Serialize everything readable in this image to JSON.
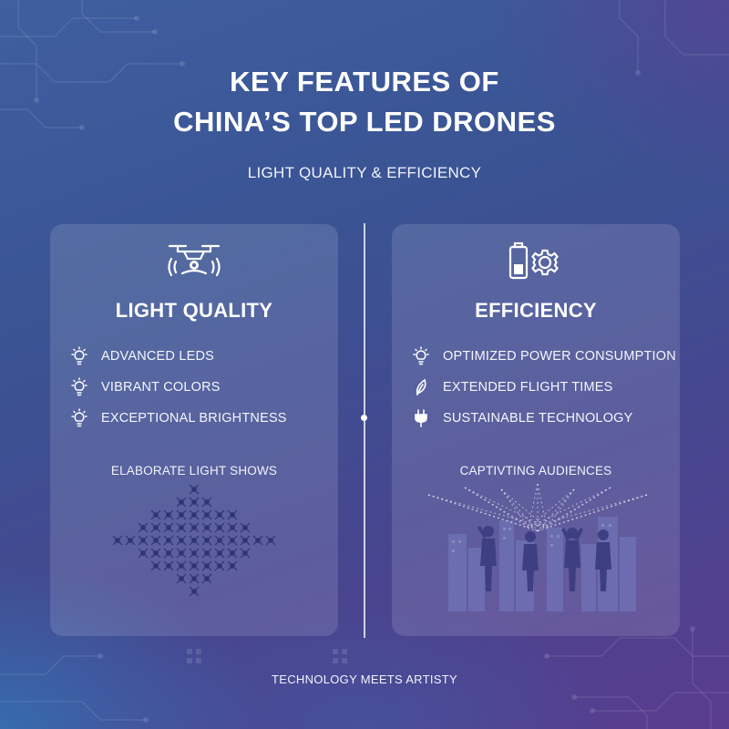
{
  "header": {
    "title_line1": "KEY FEATURES OF",
    "title_line2": "CHINA’S TOP LED DRONES",
    "subtitle": "LIGHT QUALITY & EFFICIENCY"
  },
  "panels": [
    {
      "icon": "drone-signal-icon",
      "heading": "LIGHT QUALITY",
      "features": [
        {
          "icon": "light-bulb-icon",
          "label": "ADVANCED LEDS"
        },
        {
          "icon": "light-bulb-icon",
          "label": "VIBRANT COLORS"
        },
        {
          "icon": "light-bulb-icon",
          "label": "EXCEPTIONAL BRIGHTNESS"
        }
      ],
      "caption": "ELABORATE LIGHT SHOWS",
      "illustration": "drone-formation-illustration"
    },
    {
      "icon": "battery-gear-icon",
      "heading": "EFFICIENCY",
      "features": [
        {
          "icon": "light-bulb-icon",
          "label": "OPTIMIZED POWER CONSUMPTION"
        },
        {
          "icon": "leaf-icon",
          "label": "EXTENDED FLIGHT TIMES"
        },
        {
          "icon": "plug-icon",
          "label": "SUSTAINABLE TECHNOLOGY"
        }
      ],
      "caption": "CAPTIVTING AUDIENCES",
      "illustration": "audience-city-illustration"
    }
  ],
  "footer": "TECHNOLOGY MEETS ARTISTY",
  "colors": {
    "background_start": "#3f5fa0",
    "background_end": "#5a3c8e",
    "panel": "#6a78b8",
    "text": "#ffffff"
  }
}
